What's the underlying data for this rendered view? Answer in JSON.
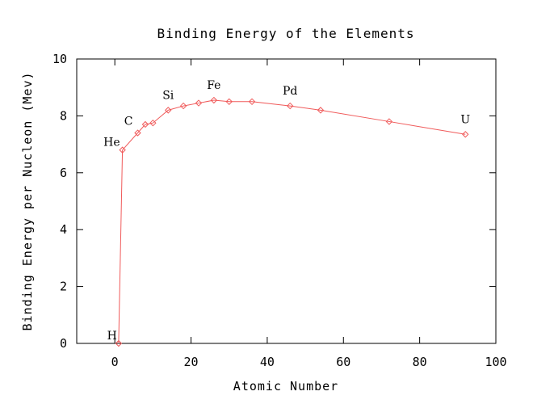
{
  "chart_data": {
    "type": "line",
    "title": "Binding Energy of the Elements",
    "xlabel": "Atomic Number",
    "ylabel": "Binding Energy per Nucleon (Mev)",
    "xlim": [
      -10,
      100
    ],
    "ylim": [
      0,
      10
    ],
    "xticks": [
      0,
      20,
      40,
      60,
      80,
      100
    ],
    "yticks": [
      0,
      2,
      4,
      6,
      8,
      10
    ],
    "grid": false,
    "color": "#f05a5a",
    "series": [
      {
        "marker": "diamond",
        "x": [
          1,
          2,
          6,
          8,
          10,
          14,
          18,
          22,
          26,
          30,
          36,
          46,
          54,
          72,
          92
        ],
        "y": [
          0.0,
          6.8,
          7.4,
          7.7,
          7.75,
          8.2,
          8.35,
          8.45,
          8.55,
          8.5,
          8.5,
          8.35,
          8.2,
          7.8,
          7.35
        ]
      }
    ],
    "annotations": [
      {
        "text": "H",
        "x": 1,
        "y": 0.0
      },
      {
        "text": "He",
        "x": 2,
        "y": 6.8
      },
      {
        "text": "C",
        "x": 6,
        "y": 7.4
      },
      {
        "text": "Si",
        "x": 14,
        "y": 8.2
      },
      {
        "text": "Fe",
        "x": 26,
        "y": 8.55
      },
      {
        "text": "Pd",
        "x": 46,
        "y": 8.35
      },
      {
        "text": "U",
        "x": 92,
        "y": 7.35
      }
    ]
  }
}
